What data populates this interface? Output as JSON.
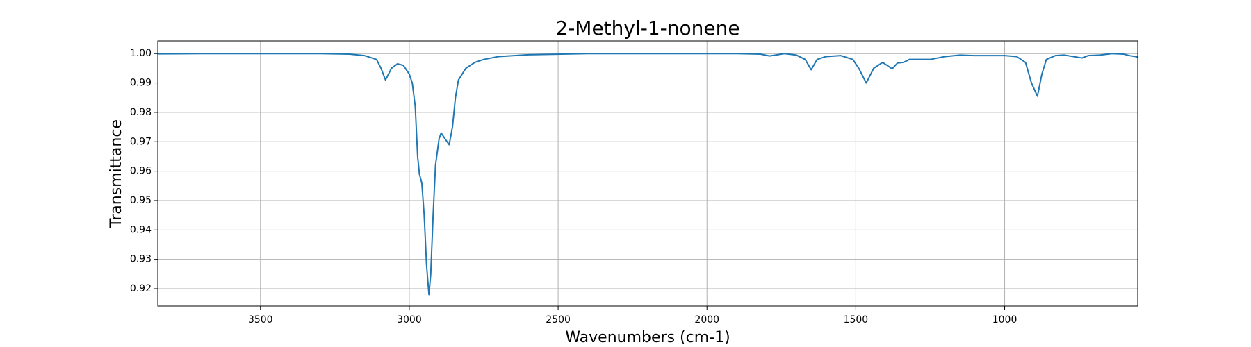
{
  "chart_data": {
    "type": "line",
    "title": "2-Methyl-1-nonene",
    "xlabel": "Wavenumbers (cm-1)",
    "ylabel": "Transmittance",
    "x": [
      3845,
      3700,
      3500,
      3300,
      3200,
      3150,
      3110,
      3095,
      3080,
      3060,
      3040,
      3020,
      3000,
      2990,
      2980,
      2972,
      2966,
      2958,
      2950,
      2942,
      2934,
      2928,
      2920,
      2912,
      2900,
      2893,
      2880,
      2866,
      2855,
      2845,
      2835,
      2810,
      2780,
      2750,
      2700,
      2600,
      2400,
      2200,
      2000,
      1900,
      1820,
      1790,
      1770,
      1740,
      1700,
      1670,
      1650,
      1630,
      1600,
      1550,
      1510,
      1490,
      1465,
      1440,
      1410,
      1395,
      1378,
      1360,
      1340,
      1320,
      1250,
      1200,
      1150,
      1100,
      1000,
      960,
      930,
      910,
      890,
      875,
      860,
      830,
      800,
      770,
      740,
      720,
      680,
      640,
      600,
      580,
      560,
      553
    ],
    "series": [
      {
        "name": "2-Methyl-1-nonene",
        "color": "#1f77b4",
        "values": [
          0.9999,
          1.0,
          1.0,
          1.0,
          0.9998,
          0.9993,
          0.998,
          0.995,
          0.991,
          0.995,
          0.9965,
          0.996,
          0.993,
          0.99,
          0.982,
          0.965,
          0.959,
          0.956,
          0.945,
          0.928,
          0.918,
          0.925,
          0.945,
          0.962,
          0.971,
          0.973,
          0.971,
          0.969,
          0.975,
          0.985,
          0.991,
          0.995,
          0.997,
          0.998,
          0.999,
          0.9996,
          1.0,
          1.0,
          1.0,
          1.0,
          0.9998,
          0.9992,
          0.9995,
          1.0,
          0.9995,
          0.998,
          0.9945,
          0.998,
          0.999,
          0.9993,
          0.998,
          0.995,
          0.99,
          0.995,
          0.997,
          0.996,
          0.9948,
          0.9968,
          0.997,
          0.998,
          0.998,
          0.999,
          0.9995,
          0.9993,
          0.9993,
          0.999,
          0.997,
          0.99,
          0.9855,
          0.993,
          0.998,
          0.9993,
          0.9995,
          0.999,
          0.9985,
          0.9993,
          0.9995,
          1.0,
          0.9998,
          0.9993,
          0.999,
          0.9988
        ]
      }
    ],
    "xlim": [
      3845,
      553
    ],
    "ylim": [
      0.9141,
      1.0043
    ],
    "xticks": [
      3500,
      3000,
      2500,
      2000,
      1500,
      1000
    ],
    "yticks": [
      0.92,
      0.93,
      0.94,
      0.95,
      0.96,
      0.97,
      0.98,
      0.99,
      {
        "value": 1,
        "label": "1.00"
      }
    ],
    "grid": true
  }
}
